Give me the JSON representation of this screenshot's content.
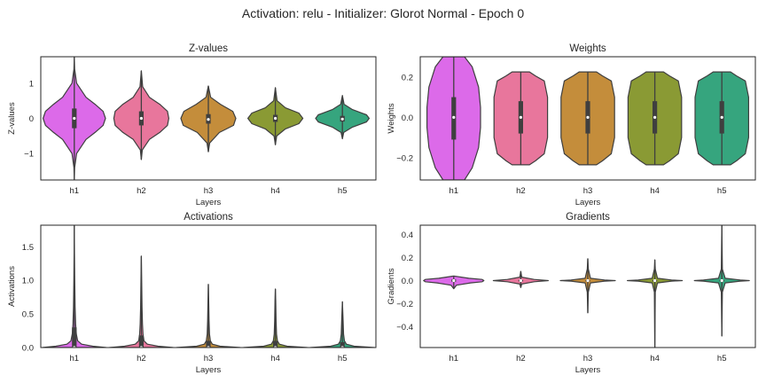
{
  "figure": {
    "suptitle": "Activation: relu - Initializer: Glorot Normal - Epoch 0"
  },
  "palette": [
    "#dc6ae9",
    "#e8769c",
    "#c48d3b",
    "#8a9a34",
    "#36a57e"
  ],
  "chart_data": [
    {
      "type": "violin",
      "title": "Z-values",
      "xlabel": "Layers",
      "ylabel": "Z-values",
      "categories": [
        "h1",
        "h2",
        "h3",
        "h4",
        "h5"
      ],
      "ylim": [
        -1.75,
        1.75
      ],
      "yticks": [
        -1,
        0,
        1
      ],
      "ytick_labels": [
        "−1",
        "0",
        "1"
      ],
      "grid": false,
      "violins": [
        {
          "min": -1.75,
          "max": 1.75,
          "q1": -0.28,
          "median": 0.0,
          "q3": 0.28,
          "whisker_low": -0.7,
          "whisker_high": 0.7,
          "profile": [
            [
              -1.75,
              0.0
            ],
            [
              -1.4,
              0.01
            ],
            [
              -1.0,
              0.07
            ],
            [
              -0.6,
              0.35
            ],
            [
              -0.4,
              0.62
            ],
            [
              -0.2,
              0.86
            ],
            [
              0.0,
              0.93
            ],
            [
              0.2,
              0.86
            ],
            [
              0.4,
              0.62
            ],
            [
              0.6,
              0.35
            ],
            [
              1.0,
              0.07
            ],
            [
              1.4,
              0.01
            ],
            [
              1.75,
              0.0
            ]
          ]
        },
        {
          "min": -1.17,
          "max": 1.35,
          "q1": -0.2,
          "median": 0.0,
          "q3": 0.2,
          "whisker_low": -0.6,
          "whisker_high": 0.6,
          "profile": [
            [
              -1.17,
              0.0
            ],
            [
              -0.9,
              0.03
            ],
            [
              -0.6,
              0.24
            ],
            [
              -0.4,
              0.55
            ],
            [
              -0.2,
              0.78
            ],
            [
              0.0,
              0.82
            ],
            [
              0.2,
              0.78
            ],
            [
              0.4,
              0.55
            ],
            [
              0.6,
              0.24
            ],
            [
              0.9,
              0.04
            ],
            [
              1.35,
              0.0
            ]
          ]
        },
        {
          "min": -0.95,
          "max": 0.92,
          "q1": -0.15,
          "median": -0.03,
          "q3": 0.12,
          "whisker_low": -0.45,
          "whisker_high": 0.45,
          "profile": [
            [
              -0.95,
              0.0
            ],
            [
              -0.7,
              0.04
            ],
            [
              -0.4,
              0.33
            ],
            [
              -0.2,
              0.75
            ],
            [
              0.0,
              0.82
            ],
            [
              0.2,
              0.73
            ],
            [
              0.4,
              0.36
            ],
            [
              0.6,
              0.07
            ],
            [
              0.92,
              0.0
            ]
          ]
        },
        {
          "min": -0.75,
          "max": 0.87,
          "q1": -0.1,
          "median": 0.0,
          "q3": 0.1,
          "whisker_low": -0.35,
          "whisker_high": 0.35,
          "profile": [
            [
              -0.75,
              0.0
            ],
            [
              -0.5,
              0.04
            ],
            [
              -0.3,
              0.3
            ],
            [
              -0.15,
              0.7
            ],
            [
              0.0,
              0.82
            ],
            [
              0.15,
              0.7
            ],
            [
              0.3,
              0.3
            ],
            [
              0.5,
              0.05
            ],
            [
              0.87,
              0.0
            ]
          ]
        },
        {
          "min": -0.58,
          "max": 0.65,
          "q1": -0.09,
          "median": -0.02,
          "q3": 0.07,
          "whisker_low": -0.28,
          "whisker_high": 0.28,
          "profile": [
            [
              -0.58,
              0.0
            ],
            [
              -0.4,
              0.04
            ],
            [
              -0.25,
              0.3
            ],
            [
              -0.1,
              0.72
            ],
            [
              0.0,
              0.8
            ],
            [
              0.1,
              0.72
            ],
            [
              0.25,
              0.3
            ],
            [
              0.4,
              0.05
            ],
            [
              0.65,
              0.0
            ]
          ]
        }
      ]
    },
    {
      "type": "violin",
      "title": "Weights",
      "xlabel": "Layers",
      "ylabel": "Weights",
      "categories": [
        "h1",
        "h2",
        "h3",
        "h4",
        "h5"
      ],
      "ylim": [
        -0.31,
        0.3
      ],
      "yticks": [
        -0.2,
        0.0,
        0.2
      ],
      "ytick_labels": [
        "−0.2",
        "0.0",
        "0.2"
      ],
      "grid": false,
      "violins": [
        {
          "min": -0.31,
          "max": 0.3,
          "q1": -0.11,
          "median": 0.0,
          "q3": 0.1,
          "whisker_low": -0.31,
          "whisker_high": 0.3,
          "profile": [
            [
              -0.31,
              0.32
            ],
            [
              -0.25,
              0.55
            ],
            [
              -0.15,
              0.74
            ],
            [
              -0.05,
              0.8
            ],
            [
              0.05,
              0.8
            ],
            [
              0.15,
              0.74
            ],
            [
              0.25,
              0.55
            ],
            [
              0.3,
              0.32
            ]
          ]
        },
        {
          "min": -0.235,
          "max": 0.225,
          "q1": -0.08,
          "median": 0.0,
          "q3": 0.08,
          "whisker_low": -0.235,
          "whisker_high": 0.225,
          "profile": [
            [
              -0.235,
              0.26
            ],
            [
              -0.215,
              0.44
            ],
            [
              -0.18,
              0.7
            ],
            [
              -0.1,
              0.8
            ],
            [
              0.0,
              0.8
            ],
            [
              0.1,
              0.8
            ],
            [
              0.18,
              0.7
            ],
            [
              0.205,
              0.44
            ],
            [
              0.225,
              0.26
            ]
          ]
        },
        {
          "min": -0.235,
          "max": 0.225,
          "q1": -0.08,
          "median": 0.0,
          "q3": 0.08,
          "whisker_low": -0.235,
          "whisker_high": 0.225,
          "profile": [
            [
              -0.235,
              0.26
            ],
            [
              -0.215,
              0.44
            ],
            [
              -0.18,
              0.7
            ],
            [
              -0.1,
              0.8
            ],
            [
              0.0,
              0.8
            ],
            [
              0.1,
              0.8
            ],
            [
              0.18,
              0.7
            ],
            [
              0.205,
              0.44
            ],
            [
              0.225,
              0.26
            ]
          ]
        },
        {
          "min": -0.235,
          "max": 0.225,
          "q1": -0.08,
          "median": 0.0,
          "q3": 0.08,
          "whisker_low": -0.235,
          "whisker_high": 0.225,
          "profile": [
            [
              -0.235,
              0.26
            ],
            [
              -0.215,
              0.44
            ],
            [
              -0.18,
              0.7
            ],
            [
              -0.1,
              0.8
            ],
            [
              0.0,
              0.8
            ],
            [
              0.1,
              0.8
            ],
            [
              0.18,
              0.7
            ],
            [
              0.205,
              0.44
            ],
            [
              0.225,
              0.26
            ]
          ]
        },
        {
          "min": -0.235,
          "max": 0.225,
          "q1": -0.08,
          "median": 0.0,
          "q3": 0.08,
          "whisker_low": -0.235,
          "whisker_high": 0.225,
          "profile": [
            [
              -0.235,
              0.26
            ],
            [
              -0.215,
              0.44
            ],
            [
              -0.18,
              0.7
            ],
            [
              -0.1,
              0.8
            ],
            [
              0.0,
              0.8
            ],
            [
              0.1,
              0.8
            ],
            [
              0.18,
              0.7
            ],
            [
              0.205,
              0.44
            ],
            [
              0.225,
              0.26
            ]
          ]
        }
      ]
    },
    {
      "type": "violin",
      "title": "Activations",
      "xlabel": "Layers",
      "ylabel": "Activations",
      "categories": [
        "h1",
        "h2",
        "h3",
        "h4",
        "h5"
      ],
      "ylim": [
        0.0,
        1.82
      ],
      "yticks": [
        0.0,
        0.5,
        1.0,
        1.5
      ],
      "ytick_labels": [
        "0.0",
        "0.5",
        "1.0",
        "1.5"
      ],
      "grid": false,
      "violins": [
        {
          "min": 0.0,
          "max": 1.82,
          "q1": 0.0,
          "median": 0.0,
          "q3": 0.3,
          "whisker_low": 0.0,
          "whisker_high": 0.7,
          "profile": [
            [
              0.0,
              0.95
            ],
            [
              0.02,
              0.55
            ],
            [
              0.05,
              0.22
            ],
            [
              0.1,
              0.1
            ],
            [
              0.2,
              0.06
            ],
            [
              0.35,
              0.04
            ],
            [
              0.6,
              0.025
            ],
            [
              1.0,
              0.012
            ],
            [
              1.4,
              0.006
            ],
            [
              1.82,
              0.0
            ]
          ]
        },
        {
          "min": 0.0,
          "max": 1.36,
          "q1": 0.0,
          "median": 0.0,
          "q3": 0.18,
          "whisker_low": 0.0,
          "whisker_high": 0.45,
          "profile": [
            [
              0.0,
              0.95
            ],
            [
              0.02,
              0.5
            ],
            [
              0.05,
              0.18
            ],
            [
              0.1,
              0.08
            ],
            [
              0.2,
              0.05
            ],
            [
              0.35,
              0.035
            ],
            [
              0.6,
              0.02
            ],
            [
              1.0,
              0.01
            ],
            [
              1.36,
              0.0
            ]
          ]
        },
        {
          "min": 0.0,
          "max": 0.94,
          "q1": 0.0,
          "median": 0.0,
          "q3": 0.1,
          "whisker_low": 0.0,
          "whisker_high": 0.25,
          "profile": [
            [
              0.0,
              0.95
            ],
            [
              0.02,
              0.35
            ],
            [
              0.05,
              0.12
            ],
            [
              0.1,
              0.06
            ],
            [
              0.2,
              0.035
            ],
            [
              0.4,
              0.02
            ],
            [
              0.7,
              0.01
            ],
            [
              0.94,
              0.0
            ]
          ]
        },
        {
          "min": 0.0,
          "max": 0.87,
          "q1": 0.0,
          "median": 0.0,
          "q3": 0.1,
          "whisker_low": 0.0,
          "whisker_high": 0.25,
          "profile": [
            [
              0.0,
              0.95
            ],
            [
              0.02,
              0.35
            ],
            [
              0.05,
              0.12
            ],
            [
              0.1,
              0.06
            ],
            [
              0.2,
              0.035
            ],
            [
              0.4,
              0.02
            ],
            [
              0.7,
              0.01
            ],
            [
              0.87,
              0.0
            ]
          ]
        },
        {
          "min": 0.0,
          "max": 0.68,
          "q1": 0.0,
          "median": 0.0,
          "q3": 0.08,
          "whisker_low": 0.0,
          "whisker_high": 0.2,
          "profile": [
            [
              0.0,
              0.95
            ],
            [
              0.02,
              0.35
            ],
            [
              0.05,
              0.12
            ],
            [
              0.1,
              0.06
            ],
            [
              0.2,
              0.035
            ],
            [
              0.4,
              0.02
            ],
            [
              0.68,
              0.0
            ]
          ]
        }
      ]
    },
    {
      "type": "violin",
      "title": "Gradients",
      "xlabel": "Layers",
      "ylabel": "Gradients",
      "categories": [
        "h1",
        "h2",
        "h3",
        "h4",
        "h5"
      ],
      "ylim": [
        -0.58,
        0.48
      ],
      "yticks": [
        -0.4,
        -0.2,
        0.0,
        0.2,
        0.4
      ],
      "ytick_labels": [
        "−0.4",
        "−0.2",
        "0.0",
        "0.2",
        "0.4"
      ],
      "grid": false,
      "violins": [
        {
          "min": -0.07,
          "max": 0.04,
          "q1": -0.01,
          "median": 0.0,
          "q3": 0.01,
          "whisker_low": -0.03,
          "whisker_high": 0.03,
          "profile": [
            [
              -0.07,
              0.0
            ],
            [
              -0.04,
              0.08
            ],
            [
              -0.02,
              0.5
            ],
            [
              -0.01,
              0.85
            ],
            [
              0.0,
              0.9
            ],
            [
              0.01,
              0.85
            ],
            [
              0.02,
              0.45
            ],
            [
              0.04,
              0.0
            ]
          ]
        },
        {
          "min": -0.06,
          "max": 0.08,
          "q1": -0.005,
          "median": 0.0,
          "q3": 0.005,
          "whisker_low": -0.02,
          "whisker_high": 0.02,
          "profile": [
            [
              -0.06,
              0.0
            ],
            [
              -0.03,
              0.03
            ],
            [
              -0.01,
              0.4
            ],
            [
              0.0,
              0.82
            ],
            [
              0.01,
              0.4
            ],
            [
              0.03,
              0.03
            ],
            [
              0.08,
              0.0
            ]
          ]
        },
        {
          "min": -0.28,
          "max": 0.19,
          "q1": -0.004,
          "median": 0.0,
          "q3": 0.004,
          "whisker_low": -0.015,
          "whisker_high": 0.015,
          "profile": [
            [
              -0.28,
              0.0
            ],
            [
              -0.1,
              0.015
            ],
            [
              -0.02,
              0.08
            ],
            [
              -0.005,
              0.5
            ],
            [
              0.0,
              0.82
            ],
            [
              0.005,
              0.5
            ],
            [
              0.02,
              0.08
            ],
            [
              0.1,
              0.015
            ],
            [
              0.19,
              0.0
            ]
          ]
        },
        {
          "min": -0.58,
          "max": 0.18,
          "q1": -0.004,
          "median": 0.0,
          "q3": 0.004,
          "whisker_low": -0.015,
          "whisker_high": 0.015,
          "profile": [
            [
              -0.58,
              0.0
            ],
            [
              -0.1,
              0.012
            ],
            [
              -0.02,
              0.08
            ],
            [
              -0.005,
              0.5
            ],
            [
              0.0,
              0.82
            ],
            [
              0.005,
              0.5
            ],
            [
              0.02,
              0.08
            ],
            [
              0.1,
              0.012
            ],
            [
              0.18,
              0.0
            ]
          ]
        },
        {
          "min": -0.48,
          "max": 0.48,
          "q1": -0.005,
          "median": 0.0,
          "q3": 0.005,
          "whisker_low": -0.02,
          "whisker_high": 0.02,
          "profile": [
            [
              -0.48,
              0.0
            ],
            [
              -0.1,
              0.015
            ],
            [
              -0.02,
              0.1
            ],
            [
              -0.005,
              0.55
            ],
            [
              0.0,
              0.82
            ],
            [
              0.005,
              0.55
            ],
            [
              0.02,
              0.1
            ],
            [
              0.1,
              0.015
            ],
            [
              0.48,
              0.0
            ]
          ]
        }
      ]
    }
  ]
}
